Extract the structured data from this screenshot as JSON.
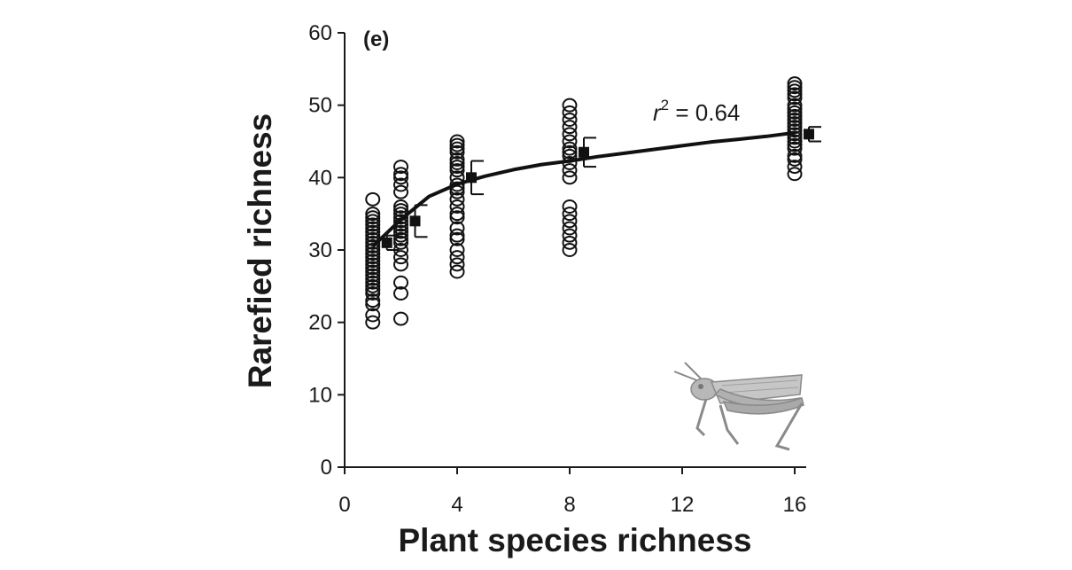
{
  "chart_data": {
    "type": "scatter",
    "panel_label": "(e)",
    "xlabel": "Plant species richness",
    "ylabel": "Rarefied richness",
    "xlim": [
      0,
      16.5
    ],
    "ylim": [
      0,
      60
    ],
    "xticks": [
      0,
      4,
      8,
      12,
      16
    ],
    "yticks": [
      0,
      10,
      20,
      30,
      40,
      50,
      60
    ],
    "grid": false,
    "annotation": {
      "var": "r",
      "sup": "2",
      "rest": " = 0.64"
    },
    "series": [
      {
        "x": 1,
        "values": [
          20,
          21,
          22.5,
          23,
          24,
          24.5,
          25,
          25.5,
          26,
          26.5,
          27,
          27.5,
          28,
          28.5,
          29,
          29.5,
          30,
          30.5,
          31,
          31.5,
          32,
          32.5,
          33,
          33.5,
          34,
          34.5,
          35,
          37
        ],
        "mean": 31,
        "err": 1
      },
      {
        "x": 2,
        "values": [
          20.5,
          24,
          25.5,
          28,
          29,
          30,
          31,
          31.5,
          32,
          32.5,
          33,
          33.5,
          34,
          34.5,
          35,
          35.5,
          36,
          38,
          39,
          40,
          40.5,
          41.5
        ],
        "mean": 34,
        "err": 2.2
      },
      {
        "x": 4,
        "values": [
          27,
          28,
          29,
          30,
          31.5,
          32,
          33,
          34.5,
          35,
          36,
          37,
          38,
          38.5,
          39,
          40,
          41,
          41.5,
          42,
          42.5,
          43.5,
          44,
          44.5,
          45
        ],
        "mean": 40,
        "err": 2.3
      },
      {
        "x": 8,
        "values": [
          30,
          31,
          32,
          33,
          34,
          35,
          36,
          40,
          41,
          42,
          43,
          43.5,
          44,
          45,
          46,
          47,
          48,
          49,
          50
        ],
        "mean": 43.5,
        "err": 2
      },
      {
        "x": 16,
        "values": [
          40.5,
          41.5,
          42.5,
          43,
          44,
          44.5,
          45,
          45.5,
          46,
          46.5,
          47,
          47.5,
          48,
          48.5,
          49,
          49.5,
          50,
          51,
          51.5,
          52,
          52.5,
          53
        ],
        "mean": 46,
        "err": 1
      }
    ],
    "fit": {
      "x": [
        1,
        2,
        3,
        4,
        5,
        6,
        7,
        8,
        9,
        10,
        11,
        12,
        13,
        14,
        15,
        16
      ],
      "y": [
        30.5,
        34.2,
        37.4,
        39.1,
        40.2,
        41.1,
        41.8,
        42.3,
        42.9,
        43.4,
        43.9,
        44.4,
        44.9,
        45.3,
        45.7,
        46.2
      ]
    }
  },
  "illustration": {
    "icon": "grasshopper-icon"
  }
}
